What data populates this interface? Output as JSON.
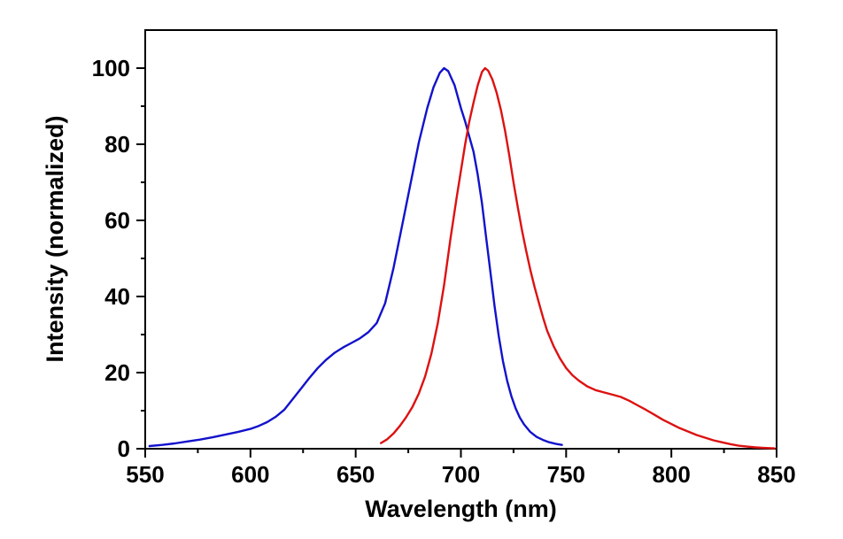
{
  "chart_data": {
    "type": "line",
    "title": "",
    "xlabel": "Wavelength (nm)",
    "ylabel": "Intensity (normalized)",
    "xlim": [
      550,
      850
    ],
    "ylim": [
      0,
      110
    ],
    "grid": false,
    "legend": "none",
    "frame_color": "#000000",
    "background_color": "#ffffff",
    "x_major_ticks": [
      550,
      600,
      650,
      700,
      750,
      800,
      850
    ],
    "x_minor_ticks": [
      575,
      625,
      675,
      725,
      775,
      825
    ],
    "y_major_ticks": [
      0,
      20,
      40,
      60,
      80,
      100
    ],
    "y_minor_ticks": [
      10,
      30,
      50,
      70,
      90
    ],
    "series": [
      {
        "name": "blue",
        "color": "#1212CC",
        "points": [
          [
            552,
            0.7
          ],
          [
            558,
            1.0
          ],
          [
            564,
            1.4
          ],
          [
            570,
            1.9
          ],
          [
            576,
            2.4
          ],
          [
            582,
            3.0
          ],
          [
            588,
            3.7
          ],
          [
            594,
            4.4
          ],
          [
            600,
            5.2
          ],
          [
            604,
            6.0
          ],
          [
            608,
            7.0
          ],
          [
            612,
            8.4
          ],
          [
            616,
            10.2
          ],
          [
            620,
            13.0
          ],
          [
            624,
            15.8
          ],
          [
            628,
            18.6
          ],
          [
            632,
            21.2
          ],
          [
            636,
            23.4
          ],
          [
            640,
            25.2
          ],
          [
            644,
            26.6
          ],
          [
            648,
            27.8
          ],
          [
            652,
            29.0
          ],
          [
            656,
            30.6
          ],
          [
            660,
            33.0
          ],
          [
            664,
            38.2
          ],
          [
            668,
            47.5
          ],
          [
            672,
            58.5
          ],
          [
            676,
            69.5
          ],
          [
            680,
            80.5
          ],
          [
            684,
            89.5
          ],
          [
            687,
            95.0
          ],
          [
            690,
            98.8
          ],
          [
            692,
            100
          ],
          [
            694,
            99.2
          ],
          [
            697,
            95.5
          ],
          [
            700,
            89.5
          ],
          [
            702,
            86.0
          ],
          [
            704,
            82.0
          ],
          [
            706,
            78.0
          ],
          [
            708,
            72.0
          ],
          [
            710,
            64.5
          ],
          [
            712,
            55.5
          ],
          [
            714,
            46.5
          ],
          [
            716,
            37.5
          ],
          [
            718,
            29.5
          ],
          [
            720,
            23.0
          ],
          [
            722,
            17.8
          ],
          [
            724,
            13.8
          ],
          [
            726,
            10.6
          ],
          [
            728,
            8.2
          ],
          [
            730,
            6.4
          ],
          [
            733,
            4.4
          ],
          [
            736,
            3.1
          ],
          [
            739,
            2.3
          ],
          [
            742,
            1.7
          ],
          [
            745,
            1.3
          ],
          [
            748,
            1.0
          ]
        ]
      },
      {
        "name": "red",
        "color": "#DD1111",
        "points": [
          [
            662,
            1.5
          ],
          [
            665,
            2.5
          ],
          [
            668,
            4.0
          ],
          [
            671,
            6.0
          ],
          [
            674,
            8.3
          ],
          [
            677,
            11.0
          ],
          [
            680,
            14.5
          ],
          [
            683,
            19.0
          ],
          [
            686,
            25.0
          ],
          [
            689,
            33.0
          ],
          [
            692,
            43.0
          ],
          [
            695,
            55.0
          ],
          [
            698,
            66.0
          ],
          [
            700,
            73.0
          ],
          [
            702,
            80.0
          ],
          [
            704,
            86.0
          ],
          [
            706,
            91.0
          ],
          [
            708,
            95.5
          ],
          [
            710,
            99.0
          ],
          [
            711.5,
            100
          ],
          [
            713,
            99.3
          ],
          [
            715,
            97.0
          ],
          [
            717,
            93.5
          ],
          [
            719,
            89.0
          ],
          [
            721,
            83.5
          ],
          [
            723,
            77.0
          ],
          [
            725,
            70.0
          ],
          [
            727,
            63.5
          ],
          [
            729,
            57.5
          ],
          [
            731,
            52.0
          ],
          [
            733,
            47.0
          ],
          [
            735,
            42.5
          ],
          [
            737,
            38.5
          ],
          [
            739,
            34.5
          ],
          [
            741,
            31.0
          ],
          [
            744,
            27.0
          ],
          [
            747,
            23.8
          ],
          [
            750,
            21.2
          ],
          [
            753,
            19.3
          ],
          [
            756,
            17.9
          ],
          [
            760,
            16.4
          ],
          [
            764,
            15.4
          ],
          [
            768,
            14.8
          ],
          [
            772,
            14.2
          ],
          [
            776,
            13.6
          ],
          [
            780,
            12.6
          ],
          [
            784,
            11.4
          ],
          [
            788,
            10.2
          ],
          [
            792,
            8.9
          ],
          [
            796,
            7.6
          ],
          [
            800,
            6.5
          ],
          [
            804,
            5.4
          ],
          [
            808,
            4.5
          ],
          [
            812,
            3.6
          ],
          [
            816,
            2.9
          ],
          [
            820,
            2.2
          ],
          [
            824,
            1.7
          ],
          [
            828,
            1.2
          ],
          [
            832,
            0.8
          ],
          [
            836,
            0.55
          ],
          [
            840,
            0.35
          ],
          [
            844,
            0.2
          ],
          [
            849,
            0.1
          ]
        ]
      }
    ]
  }
}
